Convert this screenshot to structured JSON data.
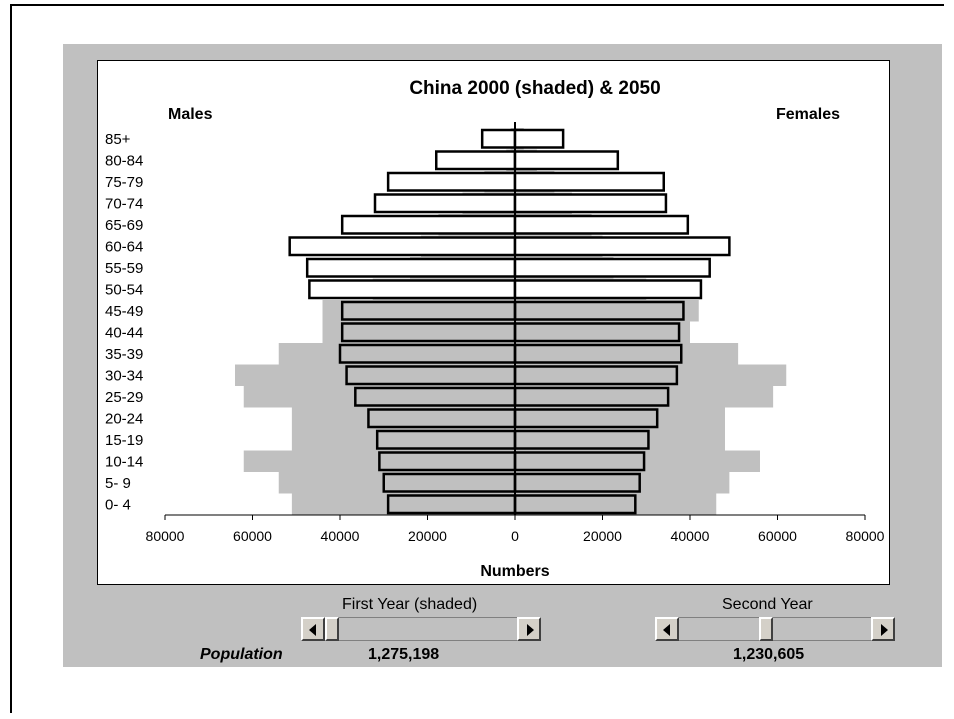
{
  "chart_data": {
    "type": "population-pyramid",
    "title": "China 2000 (shaded) & 2050",
    "left_label": "Males",
    "right_label": "Females",
    "xlabel": "Numbers",
    "xlim": [
      -80000,
      80000
    ],
    "x_ticks": [
      "80000",
      "60000",
      "40000",
      "20000",
      "0",
      "20000",
      "40000",
      "60000",
      "80000"
    ],
    "categories": [
      "85+",
      "80-84",
      "75-79",
      "70-74",
      "65-69",
      "60-64",
      "55-59",
      "50-54",
      "45-49",
      "40-44",
      "35-39",
      "30-34",
      "25-29",
      "20-24",
      "15-19",
      "10-14",
      "5- 9",
      "0- 4"
    ],
    "series": [
      {
        "name": "2000 (shaded)",
        "color": "#c0c0c0",
        "males": [
          1000,
          2000,
          7000,
          12000,
          17500,
          21500,
          24000,
          32500,
          44000,
          44000,
          54000,
          64000,
          62000,
          51000,
          51000,
          62000,
          54000,
          51000
        ],
        "females": [
          2000,
          5000,
          9000,
          13000,
          17500,
          20000,
          22500,
          30000,
          42000,
          40000,
          51000,
          62000,
          59000,
          48000,
          48000,
          56000,
          49000,
          46000
        ]
      },
      {
        "name": "2050",
        "color": "#ffffff",
        "males": [
          7500,
          18000,
          29000,
          32000,
          39500,
          51500,
          47500,
          47000,
          39500,
          39500,
          40000,
          38500,
          36500,
          33500,
          31500,
          31000,
          30000,
          29000
        ],
        "females": [
          11000,
          23500,
          34000,
          34500,
          39500,
          49000,
          44500,
          42500,
          38500,
          37500,
          38000,
          37000,
          35000,
          32500,
          30500,
          29500,
          28500,
          27500
        ]
      }
    ]
  },
  "controls": {
    "first_year_label": "First Year (shaded)",
    "second_year_label": "Second Year",
    "first_year_position": 0.0,
    "second_year_position": 0.45,
    "population_label": "Population",
    "first_year_population": "1,275,198",
    "second_year_population": "1,230,605"
  }
}
